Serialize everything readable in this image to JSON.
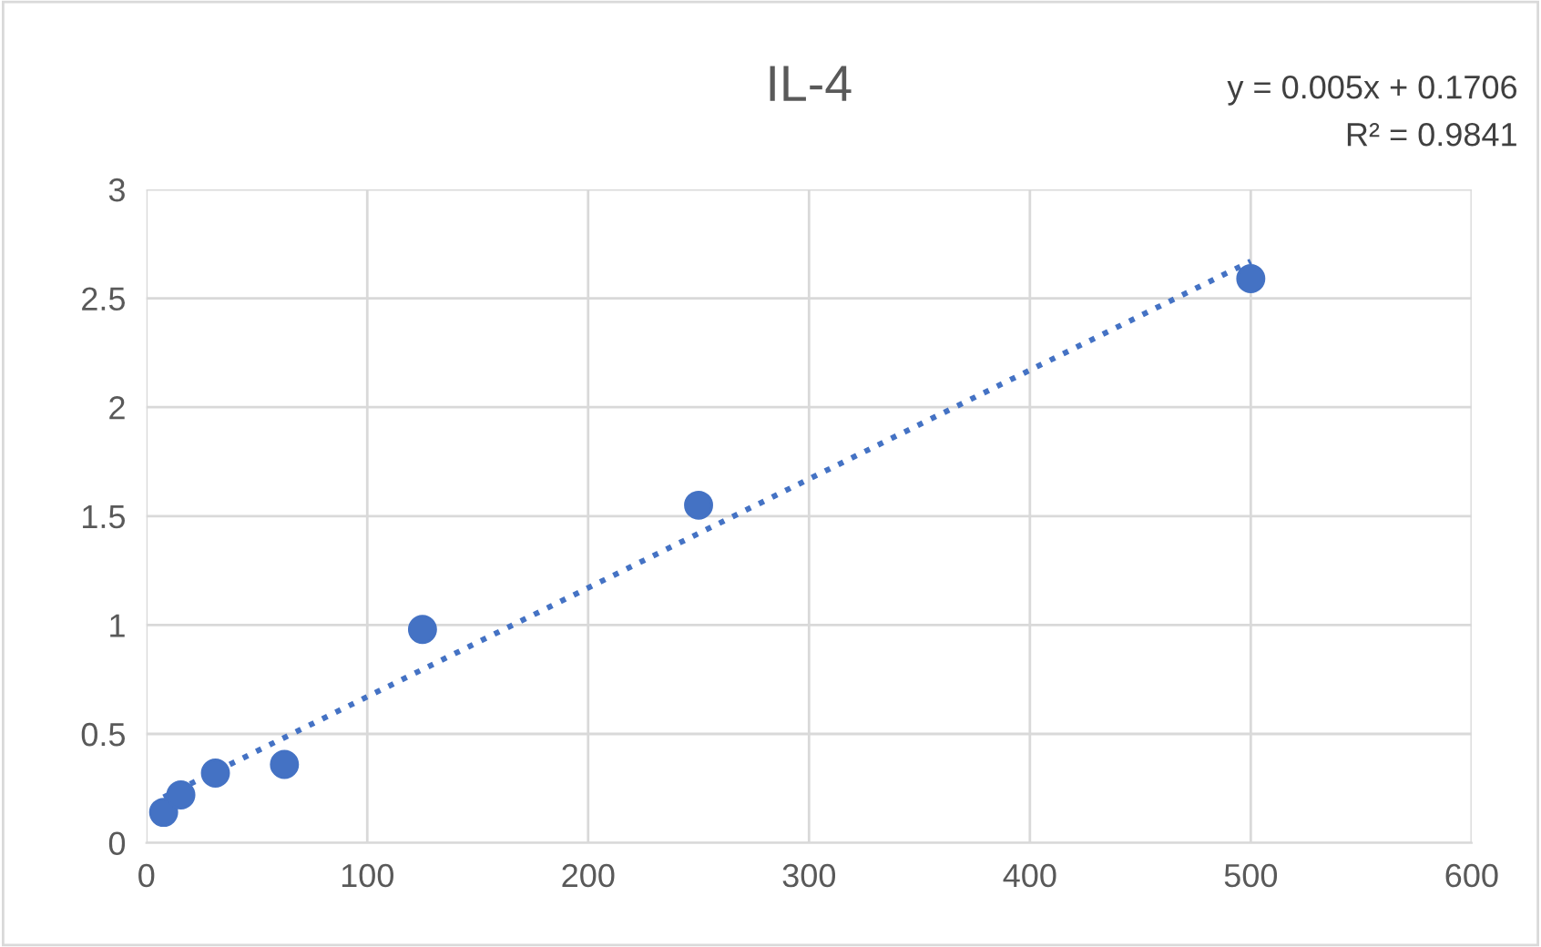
{
  "chart_data": {
    "type": "scatter",
    "title": "IL-4",
    "series": [
      {
        "color": "#4472c4",
        "marker": "circle",
        "x": [
          7.8,
          15.6,
          31.25,
          62.5,
          125,
          250,
          500
        ],
        "values": [
          0.14,
          0.22,
          0.32,
          0.36,
          0.98,
          1.55,
          2.59
        ]
      },
      {
        "type": "line",
        "color": "#4472c4",
        "line_style": "dotted",
        "marker": "none",
        "x": [
          7.8,
          500
        ],
        "values": [
          0.21,
          2.67
        ]
      }
    ],
    "xlim": [
      0,
      600
    ],
    "xticks": [
      0,
      100,
      200,
      300,
      400,
      500,
      600
    ],
    "ylim": [
      0,
      3
    ],
    "yticks": [
      0,
      0.5,
      1,
      1.5,
      2,
      2.5,
      3
    ],
    "grid": true,
    "legend": false,
    "annotations": [
      "y = 0.005x + 0.1706",
      "R² = 0.9841"
    ]
  }
}
